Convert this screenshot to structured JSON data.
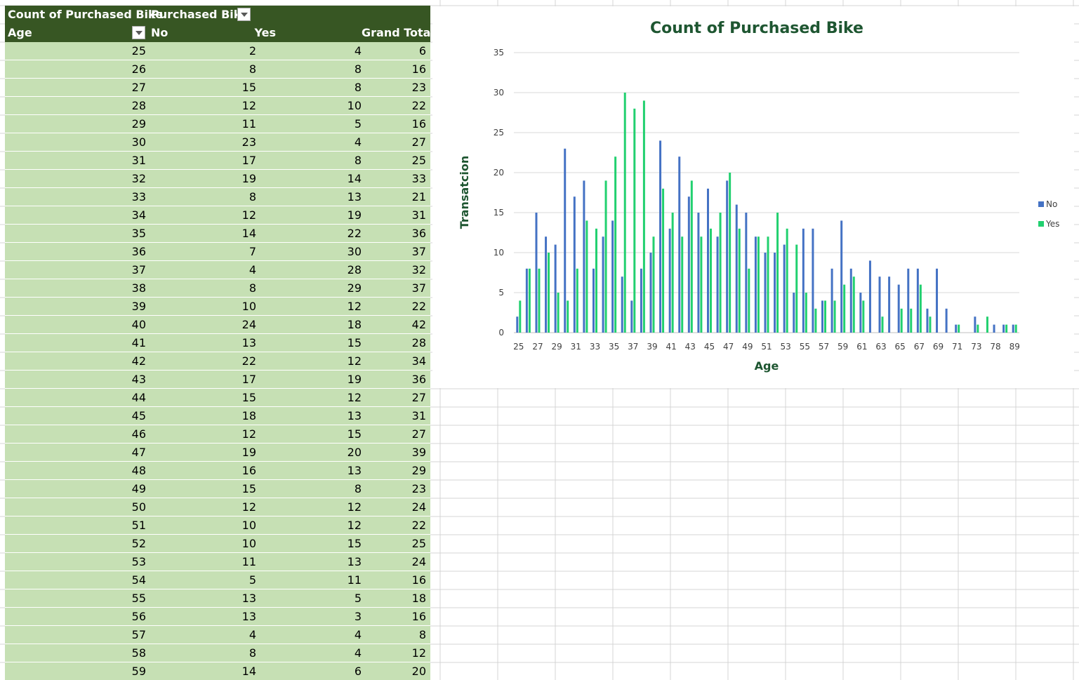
{
  "pivot": {
    "header1": {
      "label": "Count of Purchased Bike",
      "column_field": "Purchased Bike"
    },
    "header2": {
      "row_field": "Age",
      "col_no": "No",
      "col_yes": "Yes",
      "col_total": "Grand Total"
    },
    "rows": [
      {
        "age": "25",
        "no": "2",
        "yes": "4",
        "total": "6"
      },
      {
        "age": "26",
        "no": "8",
        "yes": "8",
        "total": "16"
      },
      {
        "age": "27",
        "no": "15",
        "yes": "8",
        "total": "23"
      },
      {
        "age": "28",
        "no": "12",
        "yes": "10",
        "total": "22"
      },
      {
        "age": "29",
        "no": "11",
        "yes": "5",
        "total": "16"
      },
      {
        "age": "30",
        "no": "23",
        "yes": "4",
        "total": "27"
      },
      {
        "age": "31",
        "no": "17",
        "yes": "8",
        "total": "25"
      },
      {
        "age": "32",
        "no": "19",
        "yes": "14",
        "total": "33"
      },
      {
        "age": "33",
        "no": "8",
        "yes": "13",
        "total": "21"
      },
      {
        "age": "34",
        "no": "12",
        "yes": "19",
        "total": "31"
      },
      {
        "age": "35",
        "no": "14",
        "yes": "22",
        "total": "36"
      },
      {
        "age": "36",
        "no": "7",
        "yes": "30",
        "total": "37"
      },
      {
        "age": "37",
        "no": "4",
        "yes": "28",
        "total": "32"
      },
      {
        "age": "38",
        "no": "8",
        "yes": "29",
        "total": "37"
      },
      {
        "age": "39",
        "no": "10",
        "yes": "12",
        "total": "22"
      },
      {
        "age": "40",
        "no": "24",
        "yes": "18",
        "total": "42"
      },
      {
        "age": "41",
        "no": "13",
        "yes": "15",
        "total": "28"
      },
      {
        "age": "42",
        "no": "22",
        "yes": "12",
        "total": "34"
      },
      {
        "age": "43",
        "no": "17",
        "yes": "19",
        "total": "36"
      },
      {
        "age": "44",
        "no": "15",
        "yes": "12",
        "total": "27"
      },
      {
        "age": "45",
        "no": "18",
        "yes": "13",
        "total": "31"
      },
      {
        "age": "46",
        "no": "12",
        "yes": "15",
        "total": "27"
      },
      {
        "age": "47",
        "no": "19",
        "yes": "20",
        "total": "39"
      },
      {
        "age": "48",
        "no": "16",
        "yes": "13",
        "total": "29"
      },
      {
        "age": "49",
        "no": "15",
        "yes": "8",
        "total": "23"
      },
      {
        "age": "50",
        "no": "12",
        "yes": "12",
        "total": "24"
      },
      {
        "age": "51",
        "no": "10",
        "yes": "12",
        "total": "22"
      },
      {
        "age": "52",
        "no": "10",
        "yes": "15",
        "total": "25"
      },
      {
        "age": "53",
        "no": "11",
        "yes": "13",
        "total": "24"
      },
      {
        "age": "54",
        "no": "5",
        "yes": "11",
        "total": "16"
      },
      {
        "age": "55",
        "no": "13",
        "yes": "5",
        "total": "18"
      },
      {
        "age": "56",
        "no": "13",
        "yes": "3",
        "total": "16"
      },
      {
        "age": "57",
        "no": "4",
        "yes": "4",
        "total": "8"
      },
      {
        "age": "58",
        "no": "8",
        "yes": "4",
        "total": "12"
      },
      {
        "age": "59",
        "no": "14",
        "yes": "6",
        "total": "20"
      }
    ]
  },
  "chart_data": {
    "type": "bar",
    "title": "Count of Purchased Bike",
    "xlabel": "Age",
    "ylabel": "Transatcion",
    "ylim": [
      0,
      35
    ],
    "yticks": [
      "0",
      "5",
      "10",
      "15",
      "20",
      "25",
      "30",
      "35"
    ],
    "grid": true,
    "legend_position": "right",
    "categories": [
      "25",
      "26",
      "27",
      "28",
      "29",
      "30",
      "31",
      "32",
      "33",
      "34",
      "35",
      "36",
      "37",
      "38",
      "39",
      "40",
      "41",
      "42",
      "43",
      "44",
      "45",
      "46",
      "47",
      "48",
      "49",
      "50",
      "51",
      "52",
      "53",
      "54",
      "55",
      "56",
      "57",
      "58",
      "59",
      "60",
      "61",
      "62",
      "63",
      "64",
      "65",
      "66",
      "67",
      "68",
      "69",
      "70",
      "71",
      "72",
      "73",
      "74",
      "78",
      "80",
      "89"
    ],
    "shown_x_ticks": [
      "25",
      "27",
      "29",
      "31",
      "33",
      "35",
      "37",
      "39",
      "41",
      "43",
      "45",
      "47",
      "49",
      "51",
      "53",
      "55",
      "57",
      "59",
      "61",
      "63",
      "65",
      "67",
      "69",
      "71",
      "73",
      "78",
      "89"
    ],
    "series": [
      {
        "name": "No",
        "color": "#4472c4",
        "values": [
          2,
          8,
          15,
          12,
          11,
          23,
          17,
          19,
          8,
          12,
          14,
          7,
          4,
          8,
          10,
          24,
          13,
          22,
          17,
          15,
          18,
          12,
          19,
          16,
          15,
          12,
          10,
          10,
          11,
          5,
          13,
          13,
          4,
          8,
          14,
          8,
          5,
          9,
          7,
          7,
          6,
          8,
          8,
          3,
          8,
          3,
          1,
          0,
          2,
          0,
          1,
          1,
          1
        ]
      },
      {
        "name": "Yes",
        "color": "#21d06f",
        "values": [
          4,
          8,
          8,
          10,
          5,
          4,
          8,
          14,
          13,
          19,
          22,
          30,
          28,
          29,
          12,
          18,
          15,
          12,
          19,
          12,
          13,
          15,
          20,
          13,
          8,
          12,
          12,
          15,
          13,
          11,
          5,
          3,
          4,
          4,
          6,
          7,
          4,
          0,
          2,
          0,
          3,
          3,
          6,
          2,
          0,
          0,
          1,
          0,
          1,
          2,
          0,
          1,
          1
        ]
      }
    ]
  }
}
